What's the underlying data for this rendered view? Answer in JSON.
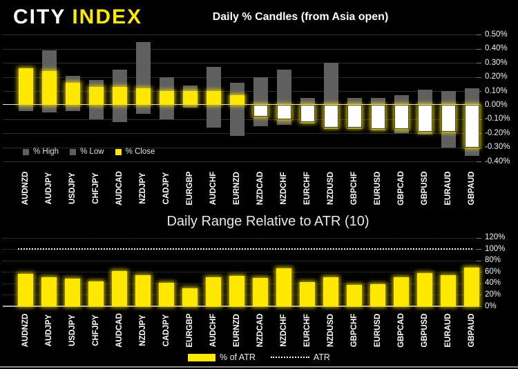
{
  "header": {
    "logo_city": "CITY",
    "logo_index": "INDEX"
  },
  "colors": {
    "accent_yellow": "#ffe800",
    "range_bar_gray": "#5f5f5f",
    "negative_close_fill": "#ffffff",
    "zero_line": "#e8e8e8",
    "atr_line": "#ffffff",
    "background": "#000000"
  },
  "chart_data": [
    {
      "type": "bar",
      "title": "Daily % Candles (from Asia open)",
      "categories": [
        "AUDNZD",
        "AUDJPY",
        "USDJPY",
        "CHFJPY",
        "AUDCAD",
        "NZDJPY",
        "CADJPY",
        "EURGBP",
        "AUDCHF",
        "EURNZD",
        "NZDCAD",
        "NZDCHF",
        "EURCHF",
        "NZDUSD",
        "GBPCHF",
        "EURUSD",
        "GBPCAD",
        "GBPUSD",
        "EURAUD",
        "GBPAUD"
      ],
      "series": [
        {
          "name": "% High",
          "values": [
            0.26,
            0.39,
            0.21,
            0.18,
            0.25,
            0.45,
            0.2,
            0.14,
            0.27,
            0.16,
            0.2,
            0.25,
            0.05,
            0.3,
            0.05,
            0.05,
            0.07,
            0.11,
            0.1,
            0.12
          ]
        },
        {
          "name": "% Low",
          "values": [
            -0.04,
            -0.05,
            -0.04,
            -0.1,
            -0.12,
            -0.06,
            -0.1,
            -0.02,
            -0.16,
            -0.22,
            -0.15,
            -0.14,
            -0.13,
            -0.17,
            -0.17,
            -0.18,
            -0.2,
            -0.21,
            -0.3,
            -0.36
          ]
        },
        {
          "name": "% Close",
          "values": [
            0.26,
            0.24,
            0.16,
            0.13,
            0.13,
            0.12,
            0.1,
            0.1,
            0.1,
            0.07,
            -0.08,
            -0.1,
            -0.12,
            -0.16,
            -0.16,
            -0.17,
            -0.17,
            -0.19,
            -0.19,
            -0.3
          ]
        }
      ],
      "ylim": [
        -0.4,
        0.5
      ],
      "ytick_step": 0.1,
      "yticks": [
        "0.50%",
        "0.40%",
        "0.30%",
        "0.20%",
        "0.10%",
        "0.00%",
        "-0.10%",
        "-0.20%",
        "-0.30%",
        "-0.40%"
      ],
      "grid": true,
      "legend_position": "bottom-left"
    },
    {
      "type": "bar",
      "title": "Daily Range Relative to ATR (10)",
      "categories": [
        "AUDNZD",
        "AUDJPY",
        "USDJPY",
        "CHFJPY",
        "AUDCAD",
        "NZDJPY",
        "CADJPY",
        "EURGBP",
        "AUDCHF",
        "EURNZD",
        "NZDCAD",
        "NZDCHF",
        "EURCHF",
        "NZDUSD",
        "GBPCHF",
        "EURUSD",
        "GBPCAD",
        "GBPUSD",
        "EURAUD",
        "GBPAUD"
      ],
      "series": [
        {
          "name": "% of ATR",
          "values": [
            57,
            51,
            49,
            43,
            62,
            55,
            41,
            32,
            51,
            53,
            50,
            66,
            42,
            51,
            37,
            39,
            51,
            58,
            54,
            68
          ]
        }
      ],
      "reference_line": {
        "name": "ATR",
        "value": 100,
        "style": "dotted"
      },
      "ylim": [
        0,
        120
      ],
      "ytick_step": 20,
      "yticks": [
        "120%",
        "100%",
        "80%",
        "60%",
        "40%",
        "20%",
        "0%"
      ],
      "grid": true,
      "legend_position": "bottom-center"
    }
  ]
}
